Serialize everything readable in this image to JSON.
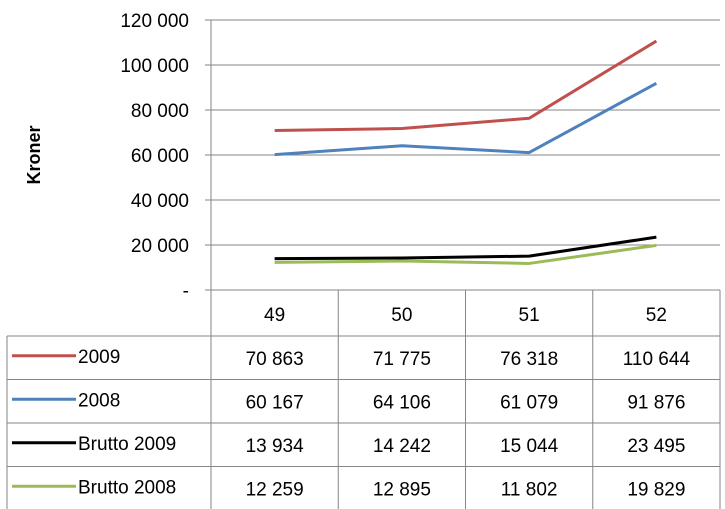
{
  "chart_data": {
    "type": "line",
    "ylabel": "Kroner",
    "xlabel": "",
    "categories": [
      "49",
      "50",
      "51",
      "52"
    ],
    "ylim": [
      0,
      120000
    ],
    "yticks": [
      {
        "value": 0,
        "label": "-"
      },
      {
        "value": 20000,
        "label": "20 000"
      },
      {
        "value": 40000,
        "label": "40 000"
      },
      {
        "value": 60000,
        "label": "60 000"
      },
      {
        "value": 80000,
        "label": "80 000"
      },
      {
        "value": 100000,
        "label": "100 000"
      },
      {
        "value": 120000,
        "label": "120 000"
      }
    ],
    "grid": true,
    "legend": "data table below chart",
    "series": [
      {
        "name": "2009",
        "color": "#c0504d",
        "values": [
          70863,
          71775,
          76318,
          110644
        ],
        "labels": [
          "70 863",
          "71 775",
          "76 318",
          "110 644"
        ]
      },
      {
        "name": "2008",
        "color": "#4f81bd",
        "values": [
          60167,
          64106,
          61079,
          91876
        ],
        "labels": [
          "60 167",
          "64 106",
          "61 079",
          "91 876"
        ]
      },
      {
        "name": "Brutto 2009",
        "color": "#000000",
        "values": [
          13934,
          14242,
          15044,
          23495
        ],
        "labels": [
          "13 934",
          "14 242",
          "15 044",
          "23 495"
        ]
      },
      {
        "name": "Brutto 2008",
        "color": "#9bbb59",
        "values": [
          12259,
          12895,
          11802,
          19829
        ],
        "labels": [
          "12 259",
          "12 895",
          "11 802",
          "19 829"
        ]
      }
    ]
  }
}
